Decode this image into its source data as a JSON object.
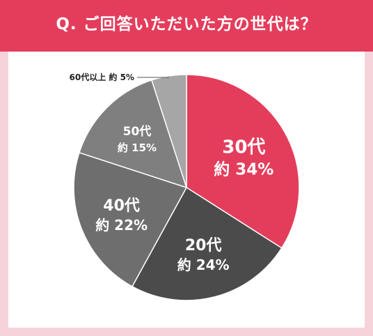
{
  "header": {
    "title": "Q. ご回答いただいた方の世代は？"
  },
  "colors": {
    "header_bg": "#e43d5c",
    "page_bg": "#f6d3da",
    "panel_bg": "#ffffff"
  },
  "chart_data": {
    "type": "pie",
    "title": "Q. ご回答いただいた方の世代は？",
    "start_angle_deg": 0,
    "direction": "clockwise",
    "slices": [
      {
        "label": "30代",
        "value_label": "約 34%",
        "value": 34,
        "color": "#e43d5c"
      },
      {
        "label": "20代",
        "value_label": "約 24%",
        "value": 24,
        "color": "#4b4b4b"
      },
      {
        "label": "40代",
        "value_label": "約 22%",
        "value": 22,
        "color": "#6e6e6e"
      },
      {
        "label": "50代",
        "value_label": "約 15%",
        "value": 15,
        "color": "#7f7f7f"
      },
      {
        "label": "60代以上",
        "value_label": "約 5%",
        "value": 5,
        "color": "#a6a6a6",
        "callout": "60代以上 約 5%"
      }
    ]
  }
}
